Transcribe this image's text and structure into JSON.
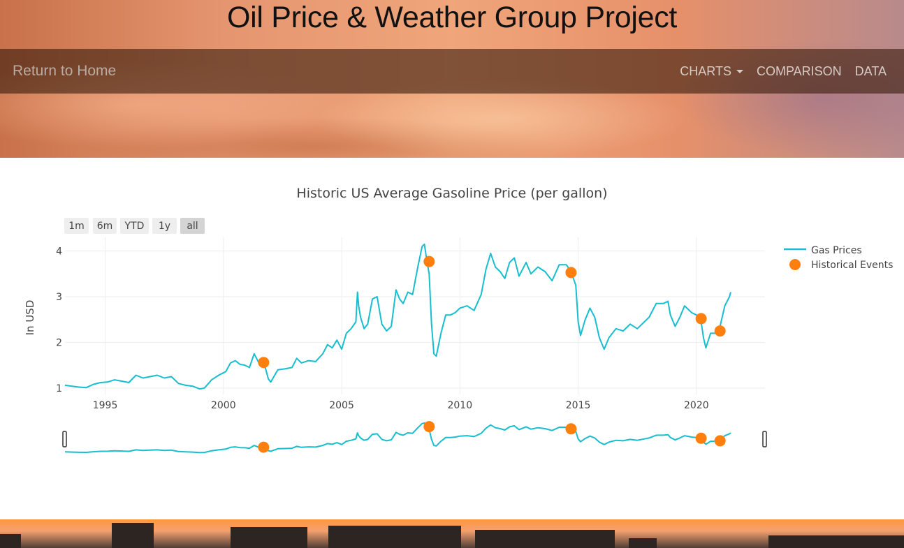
{
  "header": {
    "title": "Oil Price & Weather Group Project"
  },
  "nav": {
    "home_label": "Return to Home",
    "items": [
      {
        "label": "CHARTS",
        "dropdown": true
      },
      {
        "label": "COMPARISON",
        "dropdown": false
      },
      {
        "label": "DATA",
        "dropdown": false
      }
    ]
  },
  "range_selector": {
    "buttons": [
      "1m",
      "6m",
      "YTD",
      "1y",
      "all"
    ],
    "active": "all"
  },
  "colors": {
    "line": "#17becf",
    "marker": "#ff7f0e",
    "button_bg": "#eeeeee",
    "button_active_bg": "#d4d4d4",
    "grid": "#eeeeee"
  },
  "chart_data": {
    "type": "line",
    "title": "Historic US Average Gasoline Price (per gallon)",
    "xlabel": "",
    "ylabel": "In USD",
    "xlim": [
      1993.3,
      2022.9
    ],
    "ylim": [
      0.86,
      4.3
    ],
    "x_ticks": [
      1995,
      2000,
      2005,
      2010,
      2015,
      2020
    ],
    "y_ticks": [
      1,
      2,
      3,
      4
    ],
    "grid": true,
    "legend_position": "top-right",
    "rangeslider": true,
    "series": [
      {
        "name": "Gas Prices",
        "kind": "line",
        "x": [
          1993.3,
          1993.6,
          1993.9,
          1994.2,
          1994.5,
          1994.8,
          1995.1,
          1995.4,
          1995.7,
          1996.0,
          1996.3,
          1996.6,
          1996.9,
          1997.2,
          1997.5,
          1997.8,
          1998.1,
          1998.4,
          1998.7,
          1999.0,
          1999.2,
          1999.5,
          1999.8,
          2000.1,
          2000.3,
          2000.5,
          2000.7,
          2000.9,
          2001.1,
          2001.3,
          2001.5,
          2001.7,
          2001.9,
          2002.0,
          2002.3,
          2002.6,
          2002.9,
          2003.1,
          2003.3,
          2003.6,
          2003.9,
          2004.2,
          2004.4,
          2004.6,
          2004.8,
          2005.0,
          2005.2,
          2005.4,
          2005.6,
          2005.67,
          2005.72,
          2005.8,
          2005.95,
          2006.1,
          2006.3,
          2006.5,
          2006.7,
          2006.9,
          2007.1,
          2007.3,
          2007.45,
          2007.6,
          2007.8,
          2008.0,
          2008.2,
          2008.4,
          2008.5,
          2008.6,
          2008.7,
          2008.8,
          2008.9,
          2009.0,
          2009.2,
          2009.4,
          2009.6,
          2009.8,
          2010.0,
          2010.3,
          2010.6,
          2010.9,
          2011.1,
          2011.3,
          2011.5,
          2011.7,
          2011.9,
          2012.1,
          2012.3,
          2012.5,
          2012.8,
          2013.0,
          2013.3,
          2013.6,
          2013.9,
          2014.2,
          2014.5,
          2014.7,
          2014.9,
          2015.0,
          2015.1,
          2015.3,
          2015.5,
          2015.7,
          2015.9,
          2016.1,
          2016.3,
          2016.6,
          2016.9,
          2017.2,
          2017.5,
          2017.8,
          2018.0,
          2018.3,
          2018.6,
          2018.8,
          2018.9,
          2019.1,
          2019.3,
          2019.5,
          2019.8,
          2020.0,
          2020.2,
          2020.3,
          2020.4,
          2020.6,
          2020.8,
          2021.0,
          2021.2,
          2021.4,
          2021.45
        ],
        "y": [
          1.06,
          1.04,
          1.02,
          1.01,
          1.08,
          1.12,
          1.13,
          1.18,
          1.15,
          1.12,
          1.28,
          1.22,
          1.25,
          1.28,
          1.22,
          1.25,
          1.1,
          1.06,
          1.04,
          0.98,
          1.0,
          1.18,
          1.28,
          1.36,
          1.55,
          1.6,
          1.52,
          1.5,
          1.45,
          1.75,
          1.55,
          1.58,
          1.2,
          1.13,
          1.4,
          1.42,
          1.45,
          1.65,
          1.55,
          1.6,
          1.58,
          1.75,
          1.95,
          1.88,
          2.05,
          1.85,
          2.2,
          2.3,
          2.45,
          3.1,
          2.8,
          2.55,
          2.3,
          2.4,
          2.95,
          3.0,
          2.4,
          2.25,
          2.35,
          3.15,
          2.95,
          2.85,
          3.1,
          3.05,
          3.6,
          4.1,
          4.15,
          3.8,
          3.5,
          2.4,
          1.75,
          1.7,
          2.2,
          2.6,
          2.6,
          2.65,
          2.75,
          2.8,
          2.7,
          3.05,
          3.6,
          3.95,
          3.65,
          3.55,
          3.4,
          3.75,
          3.85,
          3.45,
          3.75,
          3.5,
          3.65,
          3.55,
          3.35,
          3.7,
          3.7,
          3.55,
          3.25,
          2.45,
          2.15,
          2.5,
          2.75,
          2.55,
          2.1,
          1.85,
          2.1,
          2.3,
          2.25,
          2.4,
          2.3,
          2.45,
          2.55,
          2.85,
          2.85,
          2.9,
          2.6,
          2.35,
          2.55,
          2.8,
          2.65,
          2.6,
          2.45,
          2.1,
          1.88,
          2.2,
          2.2,
          2.35,
          2.8,
          3.0,
          3.1
        ]
      },
      {
        "name": "Historical Events",
        "kind": "markers",
        "x": [
          2001.7,
          2008.7,
          2014.7,
          2020.2,
          2021.0
        ],
        "y": [
          1.56,
          3.77,
          3.53,
          2.52,
          2.25
        ]
      }
    ]
  }
}
